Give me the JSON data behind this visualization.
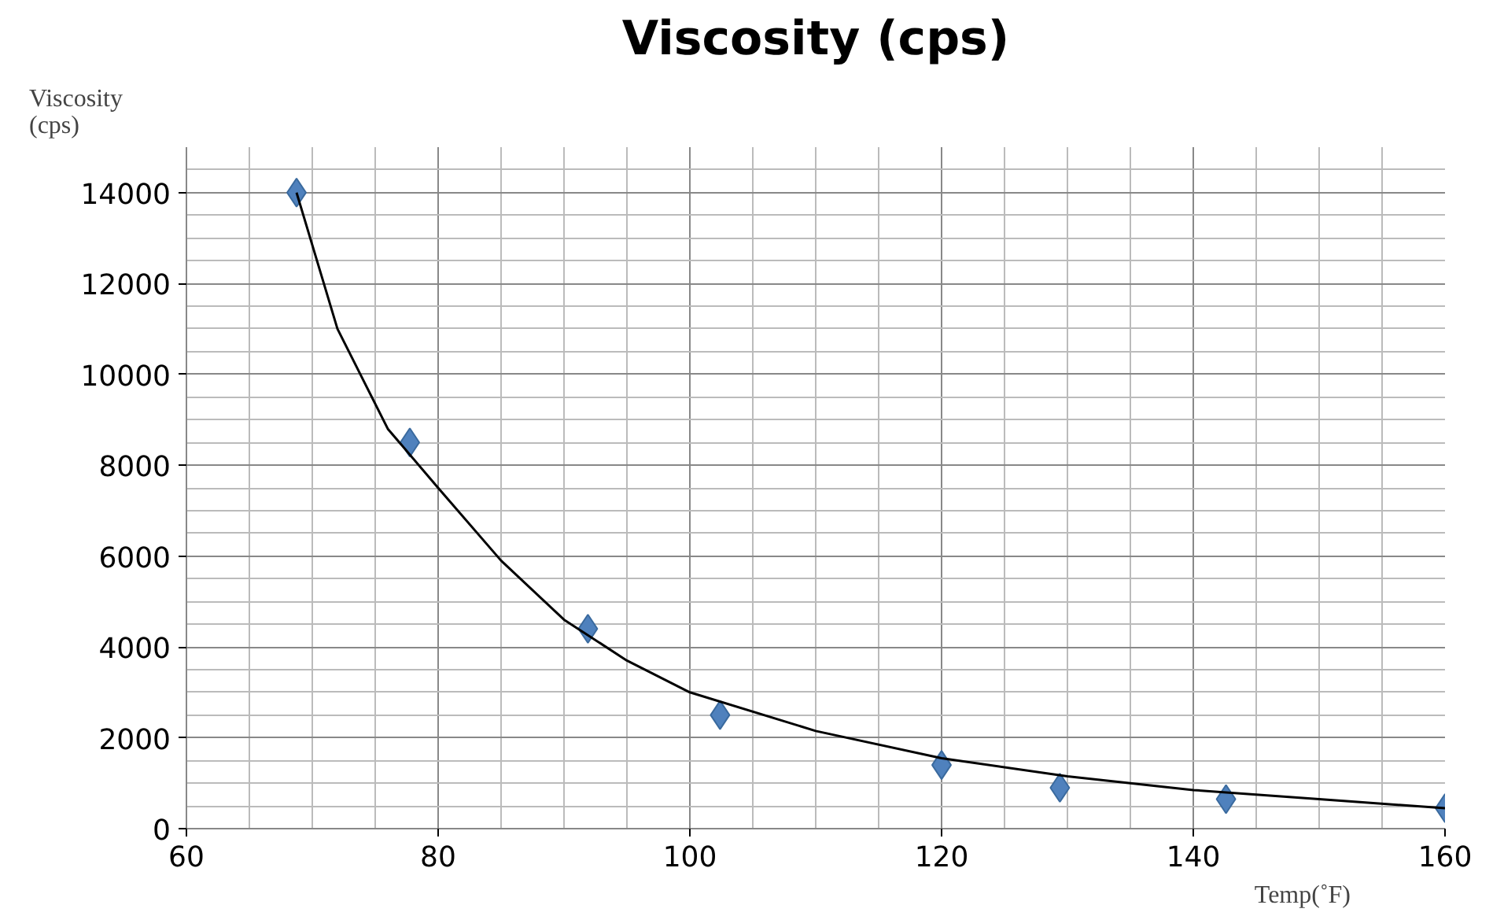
{
  "chart_data": {
    "type": "scatter",
    "title": "Viscosity (cps)",
    "xlabel": "Temp(˚F)",
    "ylabel": "Viscosity\n(cps)",
    "x": [
      68.75,
      77.75,
      91.9,
      102.4,
      120,
      129.4,
      142.6,
      160
    ],
    "series": [
      {
        "color": "#4f81bd",
        "values": [
          14000,
          8500,
          4400,
          2500,
          1400,
          900,
          650,
          450
        ],
        "marker": "diamond"
      },
      {
        "type": "line",
        "color": "#000000",
        "x": [
          68.75,
          72,
          76,
          80,
          85,
          90,
          95,
          100,
          110,
          120,
          130,
          140,
          150,
          160
        ],
        "values": [
          14000,
          11000,
          8800,
          7500,
          5900,
          4600,
          3700,
          3000,
          2150,
          1550,
          1150,
          850,
          650,
          450
        ],
        "line_style": "solid",
        "marker": "none"
      }
    ],
    "xlim": [
      60,
      160
    ],
    "xticks": [
      60,
      80,
      100,
      120,
      140,
      160
    ],
    "ylim": [
      0,
      15000
    ],
    "yticks": [
      0,
      2000,
      4000,
      6000,
      8000,
      10000,
      12000,
      14000
    ],
    "grid": true
  }
}
